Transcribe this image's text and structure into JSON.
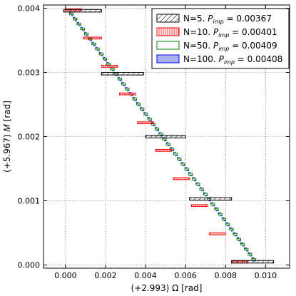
{
  "chart_data": {
    "type": "scatter",
    "title": "",
    "xlabel": "(+2.993) Ω [rad]",
    "ylabel": "(+5.967) 𝑀 [rad]",
    "xlim": [
      -0.0011,
      0.0112
    ],
    "ylim": [
      -5e-05,
      0.00405
    ],
    "xticks": [
      0.0,
      0.002,
      0.004,
      0.006,
      0.008,
      0.01
    ],
    "xtick_labels": [
      "0.000",
      "0.002",
      "0.004",
      "0.006",
      "0.008",
      "0.010"
    ],
    "yticks": [
      0.0,
      0.001,
      0.002,
      0.003,
      0.004
    ],
    "ytick_labels": [
      "0.000",
      "0.001",
      "0.002",
      "0.003",
      "0.004"
    ],
    "grid": true,
    "legend_position": "top-right",
    "diagonal_start": [
      0.0002,
      0.00395
    ],
    "diagonal_end": [
      0.0095,
      5e-05
    ],
    "series": [
      {
        "name": "N=5. P_imp = 0.00367",
        "label_main": "N=5. ",
        "label_sym": "P",
        "label_sub": "imp",
        "label_tail": " = 0.00367",
        "edge_color": "#000000",
        "fill": "hatch",
        "boxes": [
          {
            "x0": -0.0001,
            "x1": 0.0018,
            "y0": 0.00394,
            "y1": 0.00398
          },
          {
            "x0": 0.0018,
            "x1": 0.0039,
            "y0": 0.00296,
            "y1": 0.003
          },
          {
            "x0": 0.004,
            "x1": 0.006,
            "y0": 0.00198,
            "y1": 0.00202
          },
          {
            "x0": 0.0062,
            "x1": 0.0083,
            "y0": 0.00101,
            "y1": 0.00105
          },
          {
            "x0": 0.0083,
            "x1": 0.0104,
            "y0": 3e-05,
            "y1": 7e-05
          }
        ]
      },
      {
        "name": "N=10. P_imp = 0.00401",
        "label_main": "N=10. ",
        "label_sym": "P",
        "label_sub": "imp",
        "label_tail": " = 0.00401",
        "edge_color": "#ff0000",
        "fill": "vline",
        "boxes": [
          {
            "x0": 0.0,
            "x1": 0.0008,
            "y0": 0.00396,
            "y1": 0.00399
          },
          {
            "x0": 0.0009,
            "x1": 0.0018,
            "y0": 0.00352,
            "y1": 0.00355
          },
          {
            "x0": 0.0018,
            "x1": 0.0026,
            "y0": 0.00308,
            "y1": 0.00311
          },
          {
            "x0": 0.0027,
            "x1": 0.0035,
            "y0": 0.00265,
            "y1": 0.00268
          },
          {
            "x0": 0.0036,
            "x1": 0.0044,
            "y0": 0.0022,
            "y1": 0.00223
          },
          {
            "x0": 0.0045,
            "x1": 0.0053,
            "y0": 0.00177,
            "y1": 0.0018
          },
          {
            "x0": 0.0054,
            "x1": 0.0062,
            "y0": 0.00133,
            "y1": 0.00136
          },
          {
            "x0": 0.0063,
            "x1": 0.0071,
            "y0": 0.00091,
            "y1": 0.00094
          },
          {
            "x0": 0.0072,
            "x1": 0.008,
            "y0": 0.00047,
            "y1": 0.0005
          },
          {
            "x0": 0.0083,
            "x1": 0.0091,
            "y0": 3e-05,
            "y1": 6e-05
          }
        ]
      },
      {
        "name": "N=50. P_imp = 0.00409",
        "label_main": "N=50. ",
        "label_sym": "P",
        "label_sub": "imp",
        "label_tail": " = 0.00409",
        "edge_color": "#008000",
        "fill": "none",
        "count": 50
      },
      {
        "name": "N=100. P_imp = 0.00408",
        "label_main": "N=100. ",
        "label_sym": "P",
        "label_sub": "imp",
        "label_tail": " = 0.00408",
        "edge_color": "#0000ff",
        "fill": "solid",
        "fill_color": "#aab0f0",
        "count": 100
      }
    ]
  }
}
